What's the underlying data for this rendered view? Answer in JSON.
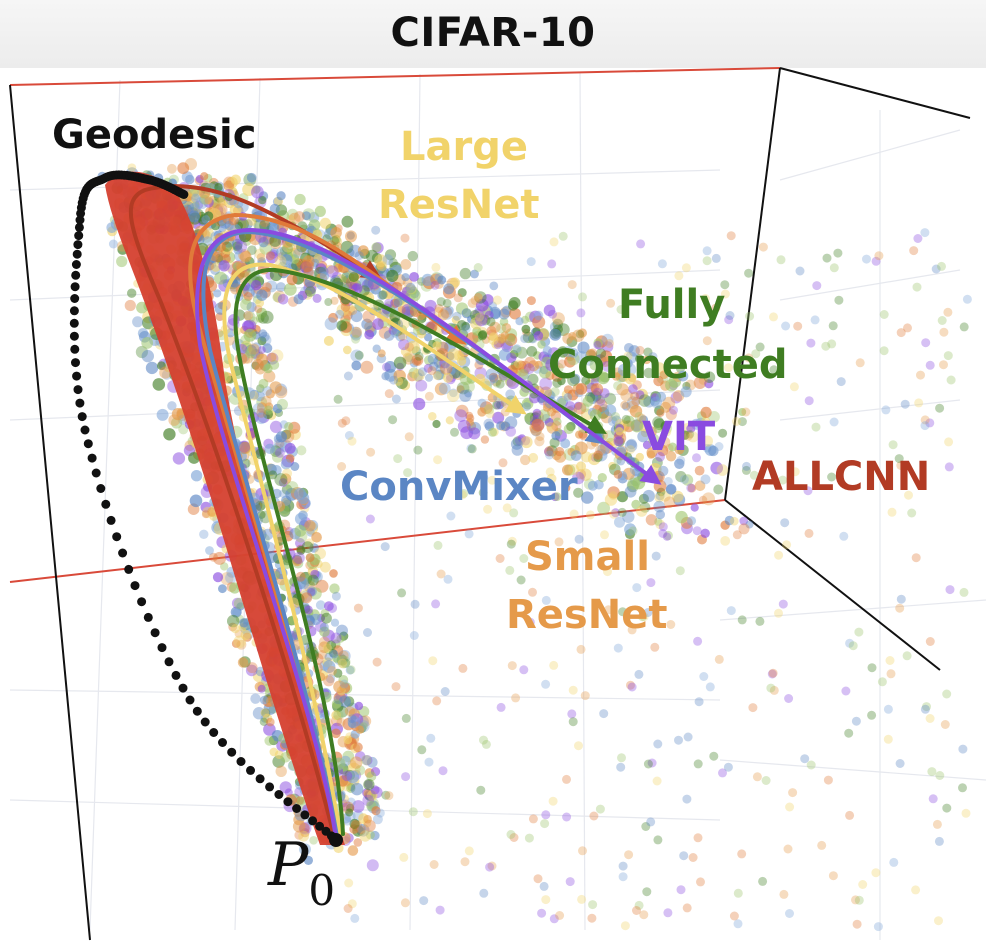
{
  "chart_data": {
    "type": "scatter",
    "title": "CIFAR-10",
    "xlabel": "",
    "ylabel": "",
    "grid": true,
    "start_point_label": "P",
    "start_point_subscript": "0",
    "series": [
      {
        "name": "Geodesic",
        "color": "#111111"
      },
      {
        "name": "Large ResNet",
        "color": "#f1d36a"
      },
      {
        "name": "Fully Connected",
        "color": "#3f7d22"
      },
      {
        "name": "VIT",
        "color": "#8a4be0"
      },
      {
        "name": "ConvMixer",
        "color": "#5b86c4"
      },
      {
        "name": "ALLCNN",
        "color": "#b23b24"
      },
      {
        "name": "Small ResNet",
        "color": "#e59a4a"
      }
    ]
  }
}
